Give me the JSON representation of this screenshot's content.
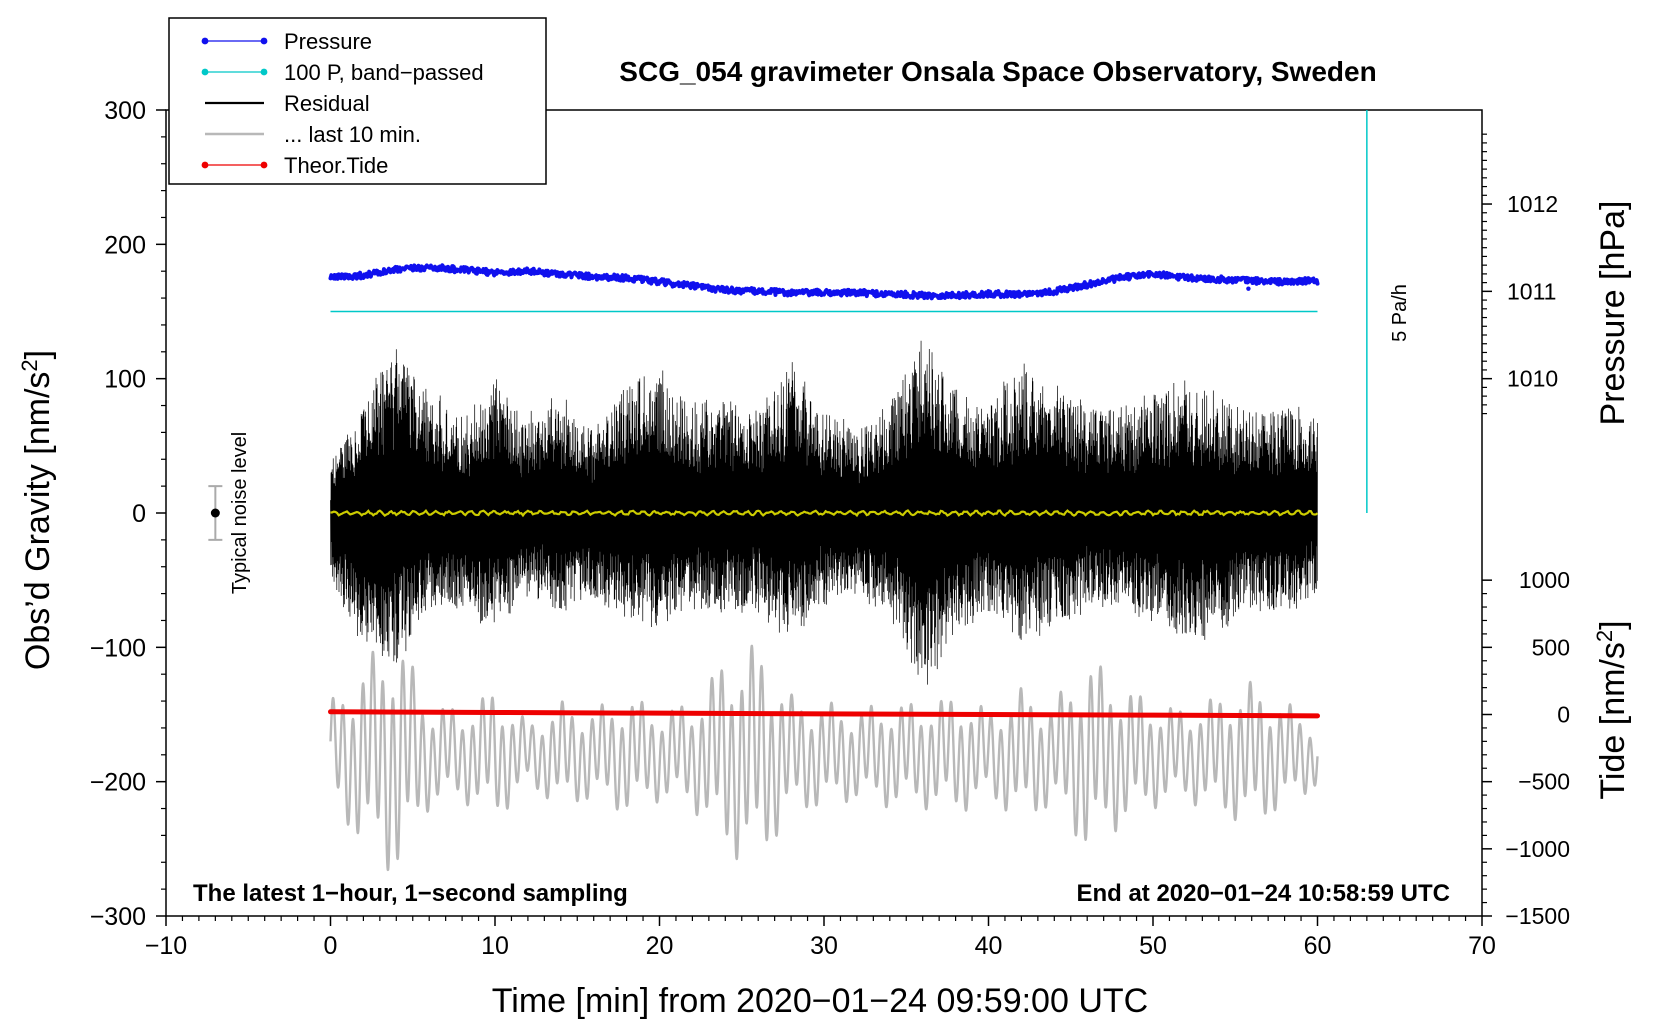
{
  "chart_data": {
    "type": "line",
    "title": "SCG_054 gravimeter Onsala Space Observatory, Sweden",
    "xlabel": "Time [min] from 2020−01−24 09:59:00 UTC",
    "ylabel_main": "Obs’d Gravity [nm/s",
    "ylabel_main_sup": "2",
    "ylabel_main_end": "]",
    "ylabel_pressure": "Pressure [hPa]",
    "ylabel_tide": "Tide [nm/s",
    "ylabel_tide_sup": "2",
    "ylabel_tide_end": "]",
    "xlim": [
      -10,
      70
    ],
    "ylim": [
      -300,
      300
    ],
    "x_ticks": [
      -10,
      0,
      10,
      20,
      30,
      40,
      50,
      60,
      70
    ],
    "x_tick_labels": [
      "−10",
      "0",
      "10",
      "20",
      "30",
      "40",
      "50",
      "60",
      "70"
    ],
    "y_ticks": [
      -300,
      -200,
      -100,
      0,
      100,
      200,
      300
    ],
    "y_tick_labels": [
      "−300",
      "−200",
      "−100",
      "0",
      "100",
      "200",
      "300"
    ],
    "pressure_ticks": [
      1010,
      1011,
      1012
    ],
    "pressure_tick_labels": [
      "1010",
      "1011",
      "1012"
    ],
    "pressure_axis_map": {
      "hpa": [
        1010,
        1012
      ],
      "y": [
        100,
        230
      ]
    },
    "tide_ticks": [
      -1500,
      -1000,
      -500,
      0,
      500,
      1000
    ],
    "tide_tick_labels": [
      "−1500",
      "−1000",
      "−500",
      "0",
      "500",
      "1000"
    ],
    "tide_axis_map": {
      "tide": [
        -1500,
        1000
      ],
      "y": [
        -300,
        -50
      ]
    },
    "legend": [
      {
        "label": "Pressure",
        "color": "#1010ee",
        "marker": true
      },
      {
        "label": "100 P, band−passed",
        "color": "#00c8c8",
        "marker": true
      },
      {
        "label": "Residual",
        "color": "#000000",
        "marker": false
      },
      {
        "label": "... last 10 min.",
        "color": "#b8b8b8",
        "marker": false
      },
      {
        "label": "Theor.Tide",
        "color": "#ee0000",
        "marker": true
      }
    ],
    "annotations": {
      "left_bottom": "The latest 1−hour, 1−second sampling",
      "right_bottom": "End at 2020−01−24 10:58:59 UTC",
      "noise_label": "Typical noise level",
      "scale_label": "5 Pa/h"
    },
    "noise_bar": {
      "x": -7,
      "center": 0,
      "low": -20,
      "high": 20
    },
    "scale_bar": {
      "x": 63,
      "y_low": 0,
      "y_high": 300
    },
    "series": [
      {
        "name": "Pressure",
        "color": "#1010ee",
        "x": [
          0,
          2,
          4,
          6,
          8,
          10,
          12,
          14,
          16,
          18,
          20,
          22,
          24,
          26,
          28,
          30,
          32,
          34,
          36,
          38,
          40,
          42,
          44,
          46,
          48,
          50,
          52,
          54,
          56,
          58,
          60
        ],
        "y": [
          175,
          177,
          181,
          183,
          181,
          179,
          180,
          178,
          176,
          175,
          172,
          169,
          166,
          165,
          164,
          164,
          164,
          163,
          162,
          162,
          163,
          163,
          165,
          170,
          175,
          178,
          175,
          174,
          173,
          172,
          173
        ]
      },
      {
        "name": "100 P, band−passed",
        "color": "#00c8c8",
        "x": [
          0,
          60
        ],
        "y": [
          150,
          150
        ]
      },
      {
        "name": "Residual",
        "color": "#000000",
        "x_range": [
          0,
          60
        ],
        "envelope_top": [
          35,
          85,
          125,
          90,
          70,
          100,
          70,
          85,
          60,
          100,
          105,
          80,
          85,
          75,
          110,
          75,
          60,
          80,
          130,
          90,
          80,
          110,
          95,
          80,
          75,
          90,
          100,
          85,
          75,
          80,
          70
        ],
        "envelope_bottom": [
          -55,
          -95,
          -110,
          -75,
          -70,
          -85,
          -60,
          -75,
          -65,
          -80,
          -85,
          -70,
          -75,
          -70,
          -95,
          -70,
          -60,
          -75,
          -135,
          -85,
          -75,
          -95,
          -85,
          -70,
          -65,
          -80,
          -95,
          -90,
          -70,
          -75,
          -60
        ]
      },
      {
        "name": "Smoothed residual",
        "color": "#cccc00",
        "x": [
          0,
          60
        ],
        "y": [
          0,
          0
        ]
      },
      {
        "name": "... last 10 min.",
        "color": "#b8b8b8",
        "x_range": [
          0,
          60
        ],
        "baseline": -180,
        "envelope": [
          40,
          70,
          95,
          40,
          35,
          50,
          25,
          40,
          35,
          45,
          35,
          40,
          75,
          85,
          45,
          40,
          35,
          40,
          40,
          45,
          35,
          50,
          40,
          75,
          55,
          40,
          35,
          45,
          55,
          40,
          25
        ]
      },
      {
        "name": "Theor.Tide",
        "color": "#ee0000",
        "x": [
          0,
          10,
          20,
          30,
          40,
          50,
          60
        ],
        "y": [
          -148,
          -148.5,
          -149,
          -149.5,
          -150,
          -150.5,
          -151
        ]
      }
    ]
  }
}
